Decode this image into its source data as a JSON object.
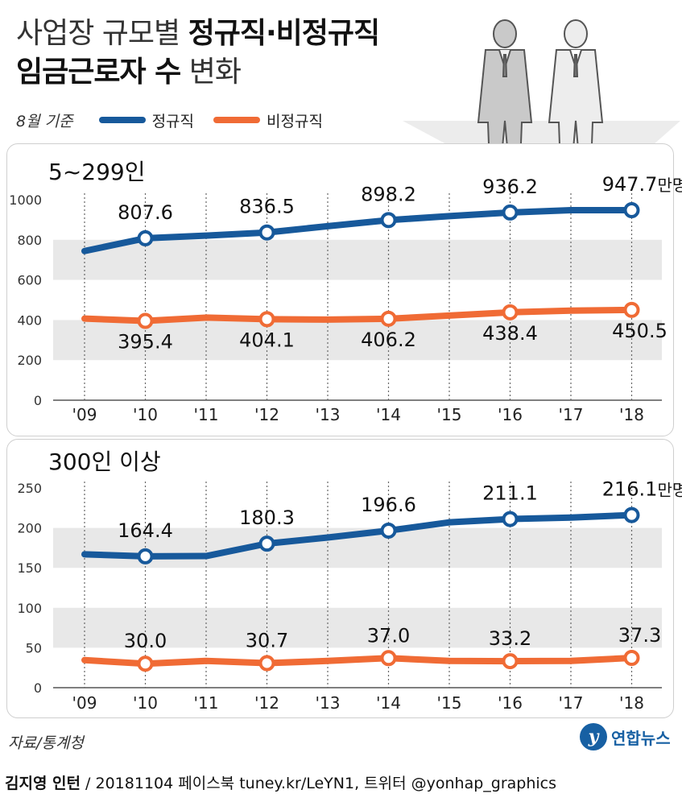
{
  "title": {
    "line1_light": "사업장 규모별 ",
    "line1_bold": "정규직·비정규직",
    "line2_bold": "임금근로자 수",
    "line2_light": " 변화"
  },
  "legend": {
    "note": "8월 기준",
    "regular_label": "정규직",
    "irregular_label": "비정규직"
  },
  "colors": {
    "regular": "#17599b",
    "irregular": "#f06b35",
    "band": "#e8e8e8"
  },
  "unit_label": "만명",
  "chart_data": [
    {
      "type": "line",
      "title": "5~299인",
      "categories": [
        "'09",
        "'10",
        "'11",
        "'12",
        "'13",
        "'14",
        "'15",
        "'16",
        "'17",
        "'18"
      ],
      "ylim": [
        0,
        1000
      ],
      "yticks": [
        0,
        200,
        400,
        600,
        800,
        1000
      ],
      "series": [
        {
          "name": "정규직",
          "values": [
            744,
            807.6,
            821,
            836.5,
            868,
            898.2,
            918,
            936.2,
            948,
            947.7
          ],
          "labels": [
            "",
            "807.6",
            "",
            "836.5",
            "",
            "898.2",
            "",
            "936.2",
            "",
            "947.7"
          ]
        },
        {
          "name": "비정규직",
          "values": [
            407,
            395.4,
            412,
            404.1,
            402,
            406.2,
            422,
            438.4,
            447,
            450.5
          ],
          "labels": [
            "",
            "395.4",
            "",
            "404.1",
            "",
            "406.2",
            "",
            "438.4",
            "",
            "450.5"
          ]
        }
      ]
    },
    {
      "type": "line",
      "title": "300인 이상",
      "categories": [
        "'09",
        "'10",
        "'11",
        "'12",
        "'13",
        "'14",
        "'15",
        "'16",
        "'17",
        "'18"
      ],
      "ylim": [
        0,
        250
      ],
      "yticks": [
        0,
        50,
        100,
        150,
        200,
        250
      ],
      "series": [
        {
          "name": "정규직",
          "values": [
            167,
            164.4,
            164.8,
            180.3,
            188,
            196.6,
            207,
            211.1,
            213,
            216.1
          ],
          "labels": [
            "",
            "164.4",
            "",
            "180.3",
            "",
            "196.6",
            "",
            "211.1",
            "",
            "216.1"
          ]
        },
        {
          "name": "비정규직",
          "values": [
            34.5,
            30.0,
            33.5,
            30.7,
            33.5,
            37.0,
            33.5,
            33.2,
            33.5,
            37.3
          ],
          "labels": [
            "",
            "30.0",
            "",
            "30.7",
            "",
            "37.0",
            "",
            "33.2",
            "",
            "37.3"
          ]
        }
      ]
    }
  ],
  "source": "자료/통계청",
  "logo": {
    "mark": "y",
    "name": "연합뉴스"
  },
  "footer": {
    "author": "김지영 인턴",
    "credit": " / 20181104 페이스북 tuney.kr/LeYN1, 트위터 @yonhap_graphics"
  }
}
